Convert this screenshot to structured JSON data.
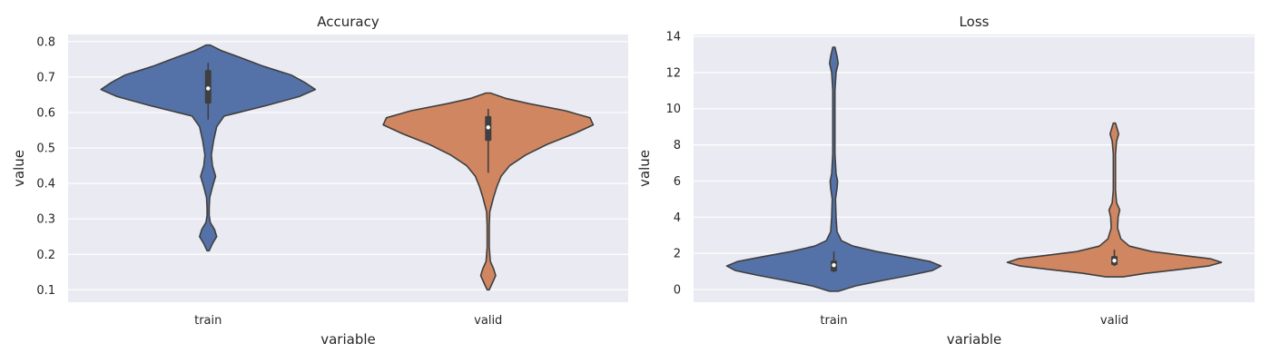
{
  "colors": {
    "train": "#5572a8",
    "valid": "#d08660",
    "background": "#eaeaf2"
  },
  "chart_data": [
    {
      "type": "violin",
      "title": "Accuracy",
      "xlabel": "variable",
      "ylabel": "value",
      "categories": [
        "train",
        "valid"
      ],
      "ylim": [
        0.065,
        0.82
      ],
      "yticks": [
        0.1,
        0.2,
        0.3,
        0.4,
        0.5,
        0.6,
        0.7,
        0.8
      ],
      "ytick_labels": [
        "0.1",
        "0.2",
        "0.3",
        "0.4",
        "0.5",
        "0.6",
        "0.7",
        "0.8"
      ],
      "grid": true,
      "series": [
        {
          "category": "train",
          "range": [
            0.21,
            0.79
          ],
          "box": {
            "q1": 0.625,
            "median": 0.668,
            "q3": 0.72,
            "whisker_low": 0.58,
            "whisker_high": 0.74
          },
          "density": [
            [
              0.21,
              0.01
            ],
            [
              0.23,
              0.04
            ],
            [
              0.25,
              0.08
            ],
            [
              0.27,
              0.06
            ],
            [
              0.29,
              0.02
            ],
            [
              0.31,
              0.01
            ],
            [
              0.33,
              0.01
            ],
            [
              0.36,
              0.015
            ],
            [
              0.39,
              0.04
            ],
            [
              0.42,
              0.07
            ],
            [
              0.45,
              0.04
            ],
            [
              0.48,
              0.03
            ],
            [
              0.52,
              0.05
            ],
            [
              0.56,
              0.08
            ],
            [
              0.59,
              0.15
            ],
            [
              0.62,
              0.55
            ],
            [
              0.645,
              0.85
            ],
            [
              0.665,
              1.0
            ],
            [
              0.685,
              0.9
            ],
            [
              0.705,
              0.78
            ],
            [
              0.73,
              0.52
            ],
            [
              0.755,
              0.3
            ],
            [
              0.775,
              0.12
            ],
            [
              0.79,
              0.02
            ]
          ]
        },
        {
          "category": "valid",
          "range": [
            0.1,
            0.655
          ],
          "box": {
            "q1": 0.52,
            "median": 0.558,
            "q3": 0.59,
            "whisker_low": 0.43,
            "whisker_high": 0.61
          },
          "density": [
            [
              0.1,
              0.01
            ],
            [
              0.12,
              0.04
            ],
            [
              0.14,
              0.07
            ],
            [
              0.16,
              0.05
            ],
            [
              0.18,
              0.02
            ],
            [
              0.22,
              0.01
            ],
            [
              0.28,
              0.01
            ],
            [
              0.32,
              0.015
            ],
            [
              0.36,
              0.05
            ],
            [
              0.39,
              0.08
            ],
            [
              0.42,
              0.12
            ],
            [
              0.45,
              0.2
            ],
            [
              0.48,
              0.35
            ],
            [
              0.51,
              0.55
            ],
            [
              0.54,
              0.8
            ],
            [
              0.565,
              0.98
            ],
            [
              0.585,
              0.95
            ],
            [
              0.605,
              0.72
            ],
            [
              0.625,
              0.38
            ],
            [
              0.64,
              0.16
            ],
            [
              0.655,
              0.02
            ]
          ]
        }
      ]
    },
    {
      "type": "violin",
      "title": "Loss",
      "xlabel": "variable",
      "ylabel": "value",
      "categories": [
        "train",
        "valid"
      ],
      "ylim": [
        -0.7,
        14.1
      ],
      "yticks": [
        0,
        2,
        4,
        6,
        8,
        10,
        12,
        14
      ],
      "ytick_labels": [
        "0",
        "2",
        "4",
        "6",
        "8",
        "10",
        "12",
        "14"
      ],
      "grid": true,
      "series": [
        {
          "category": "train",
          "range": [
            -0.1,
            13.4
          ],
          "box": {
            "q1": 1.0,
            "median": 1.35,
            "q3": 1.6,
            "whisker_low": 0.95,
            "whisker_high": 2.1
          },
          "density": [
            [
              -0.1,
              0.04
            ],
            [
              0.2,
              0.2
            ],
            [
              0.5,
              0.45
            ],
            [
              0.8,
              0.72
            ],
            [
              1.05,
              0.92
            ],
            [
              1.3,
              1.0
            ],
            [
              1.55,
              0.9
            ],
            [
              1.8,
              0.68
            ],
            [
              2.1,
              0.4
            ],
            [
              2.4,
              0.18
            ],
            [
              2.7,
              0.07
            ],
            [
              3.2,
              0.03
            ],
            [
              4.0,
              0.02
            ],
            [
              5.0,
              0.015
            ],
            [
              5.6,
              0.03
            ],
            [
              6.0,
              0.035
            ],
            [
              6.4,
              0.02
            ],
            [
              7.5,
              0.01
            ],
            [
              9.0,
              0.01
            ],
            [
              11.0,
              0.01
            ],
            [
              12.0,
              0.02
            ],
            [
              12.5,
              0.04
            ],
            [
              12.9,
              0.03
            ],
            [
              13.4,
              0.01
            ]
          ]
        },
        {
          "category": "valid",
          "range": [
            0.7,
            9.2
          ],
          "box": {
            "q1": 1.35,
            "median": 1.6,
            "q3": 1.85,
            "whisker_low": 1.3,
            "whisker_high": 2.2
          },
          "density": [
            [
              0.7,
              0.08
            ],
            [
              0.9,
              0.3
            ],
            [
              1.1,
              0.6
            ],
            [
              1.3,
              0.88
            ],
            [
              1.5,
              1.0
            ],
            [
              1.7,
              0.9
            ],
            [
              1.9,
              0.62
            ],
            [
              2.1,
              0.35
            ],
            [
              2.4,
              0.14
            ],
            [
              2.8,
              0.06
            ],
            [
              3.4,
              0.03
            ],
            [
              4.0,
              0.035
            ],
            [
              4.4,
              0.05
            ],
            [
              4.8,
              0.02
            ],
            [
              5.5,
              0.01
            ],
            [
              6.5,
              0.01
            ],
            [
              7.5,
              0.01
            ],
            [
              8.2,
              0.02
            ],
            [
              8.6,
              0.04
            ],
            [
              9.0,
              0.02
            ],
            [
              9.2,
              0.01
            ]
          ]
        }
      ]
    }
  ]
}
